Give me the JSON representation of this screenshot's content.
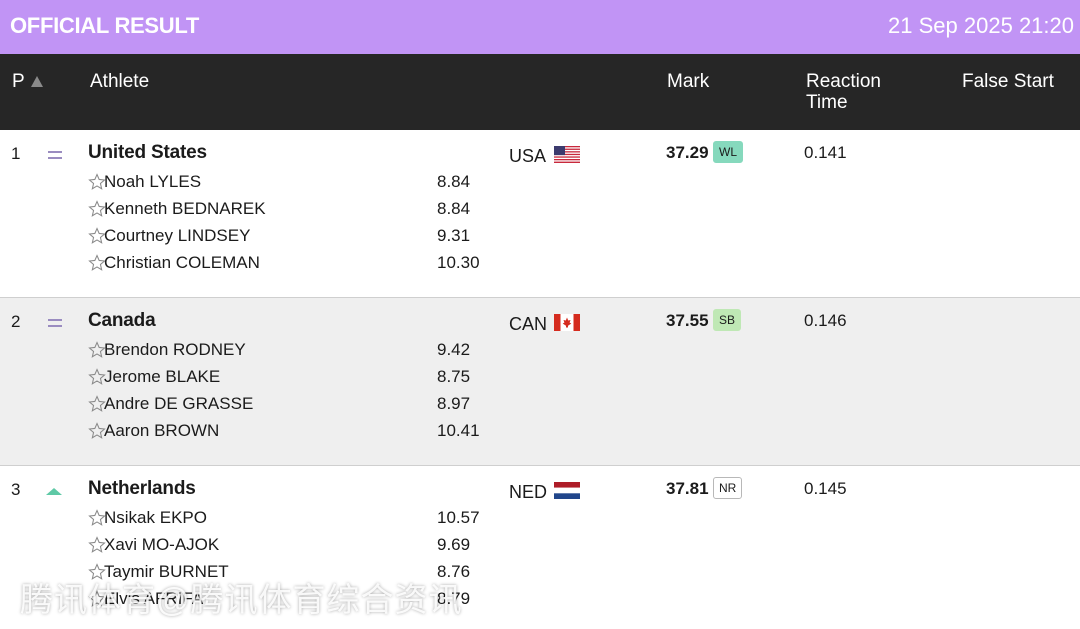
{
  "top_bar": {
    "title": "OFFICIAL RESULT",
    "datetime": "21 Sep 2025 21:20"
  },
  "columns": {
    "position": "P",
    "athlete": "Athlete",
    "mark": "Mark",
    "reaction_time": "Reaction Time",
    "false_start": "False Start"
  },
  "teams": [
    {
      "position": "1",
      "trend": "equal",
      "name": "United States",
      "country": "USA",
      "flag": "usa-flag",
      "mark": "37.29",
      "record": "WL",
      "reaction_time": "0.141",
      "athletes": [
        {
          "name": "Noah LYLES",
          "split": "8.84"
        },
        {
          "name": "Kenneth BEDNAREK",
          "split": "8.84"
        },
        {
          "name": "Courtney LINDSEY",
          "split": "9.31"
        },
        {
          "name": "Christian COLEMAN",
          "split": "10.30"
        }
      ]
    },
    {
      "position": "2",
      "trend": "equal",
      "name": "Canada",
      "country": "CAN",
      "flag": "canada-flag",
      "mark": "37.55",
      "record": "SB",
      "reaction_time": "0.146",
      "athletes": [
        {
          "name": "Brendon RODNEY",
          "split": "9.42"
        },
        {
          "name": "Jerome BLAKE",
          "split": "8.75"
        },
        {
          "name": "Andre DE GRASSE",
          "split": "8.97"
        },
        {
          "name": "Aaron BROWN",
          "split": "10.41"
        }
      ]
    },
    {
      "position": "3",
      "trend": "up",
      "name": "Netherlands",
      "country": "NED",
      "flag": "netherlands-flag",
      "mark": "37.81",
      "record": "NR",
      "reaction_time": "0.145",
      "athletes": [
        {
          "name": "Nsikak EKPO",
          "split": "10.57"
        },
        {
          "name": "Xavi MO-AJOK",
          "split": "9.69"
        },
        {
          "name": "Taymir BURNET",
          "split": "8.76"
        },
        {
          "name": "Elvis AFRIFA",
          "split": "8.79"
        }
      ]
    }
  ],
  "colors": {
    "top_bar": "#c194f5",
    "header": "#262626",
    "record_wl": "#86d9bd",
    "record_sb": "#bfe8b5",
    "trend_up": "#5fc9a6",
    "trend_equal": "#9a8cc0"
  },
  "watermark": "腾讯体育@腾讯体育综合资讯"
}
